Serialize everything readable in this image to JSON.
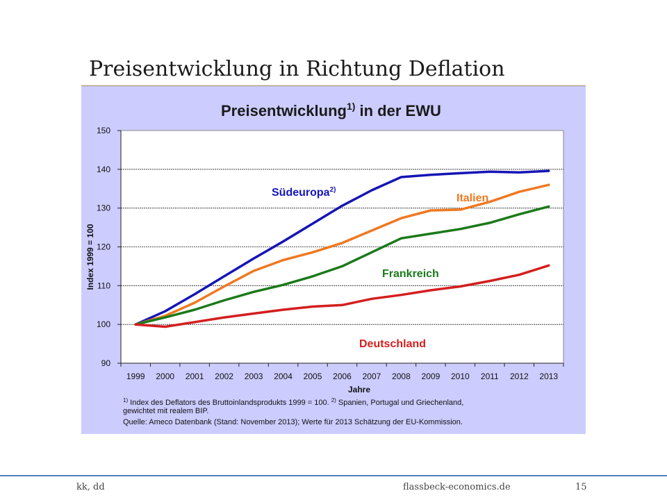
{
  "slide": {
    "title": "Preisentwicklung in Richtung Deflation",
    "footer_left": "kk, dd",
    "footer_center": "flassbeck-economics.de",
    "footer_right": "15"
  },
  "chart_data": {
    "type": "line",
    "title_main": "Preisentwicklung",
    "title_sup": "1)",
    "title_rest": " in der EWU",
    "xlabel": "Jahre",
    "ylabel": "Index 1999 = 100",
    "ylim": [
      90,
      150
    ],
    "yticks": [
      90,
      100,
      110,
      120,
      130,
      140,
      150
    ],
    "x": [
      1999,
      2000,
      2001,
      2002,
      2003,
      2004,
      2005,
      2006,
      2007,
      2008,
      2009,
      2010,
      2011,
      2012,
      2013
    ],
    "grid": "horizontal",
    "series": [
      {
        "name": "Südeuropa",
        "sup": "2)",
        "color": "#1515b5",
        "values": [
          100,
          103.4,
          107.8,
          112.4,
          117,
          121.4,
          126,
          130.6,
          134.6,
          138,
          138.6,
          139,
          139.4,
          139.2,
          139.6
        ]
      },
      {
        "name": "Italien",
        "color": "#f07820",
        "values": [
          100,
          102.2,
          105.6,
          109.8,
          113.8,
          116.6,
          118.6,
          121,
          124.2,
          127.4,
          129.4,
          129.6,
          131.6,
          134.2,
          136
        ]
      },
      {
        "name": "Frankreich",
        "color": "#1a7a1a",
        "values": [
          100,
          101.8,
          103.8,
          106.2,
          108.4,
          110.2,
          112.4,
          115,
          118.6,
          122.2,
          123.4,
          124.6,
          126.2,
          128.4,
          130.4
        ]
      },
      {
        "name": "Deutschland",
        "color": "#d41e1e",
        "values": [
          100,
          99.4,
          100.6,
          101.8,
          102.8,
          103.8,
          104.6,
          105,
          106.6,
          107.6,
          108.8,
          109.8,
          111.2,
          112.8,
          115.2
        ]
      }
    ],
    "footnotes": [
      {
        "sup": "1)",
        "text": " Index des Deflators des Bruttoinlandsprodukts 1999 = 100. "
      },
      {
        "sup": "2)",
        "text": " Spanien, Portugal und Griechenland,"
      },
      {
        "text": "gewichtet mit realem BIP."
      },
      {
        "text": "Quelle: Ameco Datenbank (Stand: November 2013); Werte für 2013 Schätzung der EU-Kommission."
      }
    ]
  }
}
